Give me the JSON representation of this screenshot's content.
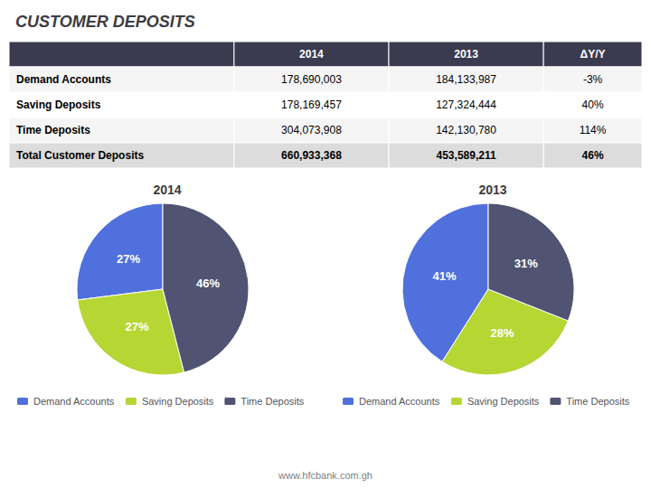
{
  "chart_data": [
    {
      "type": "table",
      "title": "CUSTOMER DEPOSITS",
      "categories": [
        "Demand Accounts",
        "Saving Deposits",
        "Time Deposits",
        "Total Customer Deposits"
      ],
      "series": [
        {
          "name": "2014",
          "values": [
            178690003,
            178169457,
            304073908,
            660933368
          ],
          "value_labels": [
            "178,690,003",
            "178,169,457",
            "304,073,908",
            "660,933,368"
          ]
        },
        {
          "name": "2013",
          "values": [
            184133987,
            127324444,
            142130780,
            453589211
          ],
          "value_labels": [
            "184,133,987",
            "127,324,444",
            "142,130,780",
            "453,589,211"
          ]
        },
        {
          "name": "ΔY/Y",
          "values": [
            -3,
            40,
            114,
            46
          ],
          "value_labels": [
            "-3%",
            "40%",
            "114%",
            "46%"
          ]
        }
      ],
      "annotations": [
        "www.hfcbank.com.gh"
      ]
    },
    {
      "type": "pie",
      "title": "2014",
      "categories": [
        "Demand Accounts",
        "Saving Deposits",
        "Time Deposits"
      ],
      "values": [
        27,
        27,
        46
      ],
      "value_labels": [
        "27%",
        "27%",
        "46%"
      ],
      "data_labels": true,
      "legend": "bottom"
    },
    {
      "type": "pie",
      "title": "2013",
      "categories": [
        "Demand Accounts",
        "Saving Deposits",
        "Time Deposits"
      ],
      "values": [
        41,
        28,
        31
      ],
      "value_labels": [
        "41%",
        "28%",
        "31%"
      ],
      "data_labels": true,
      "legend": "bottom"
    }
  ]
}
